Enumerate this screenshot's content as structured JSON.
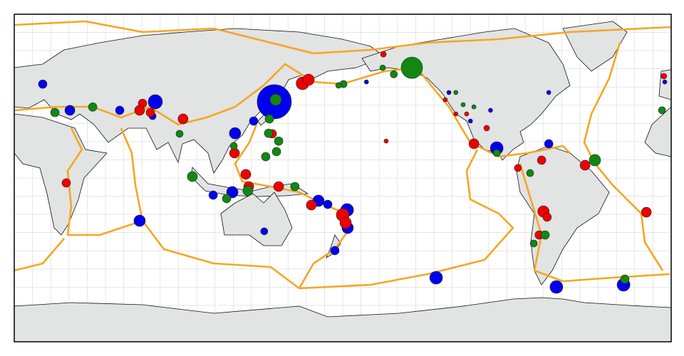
{
  "map": {
    "type": "scatter",
    "projection": "equirectangular",
    "lonlim": [
      0,
      360
    ],
    "latlim": [
      -90,
      90
    ],
    "grid": true,
    "grid_step": 10,
    "series": [
      {
        "color": "#0000ee",
        "lon": [
          142.5,
          77.3,
          15.6,
          30.5,
          57.8,
          121,
          131.2,
          68.7,
          137,
          109,
          119.5,
          166.7,
          171.8,
          182.4,
          182.7,
          175.7,
          231.2,
          297.1,
          333.9,
          264.4,
          292.9,
          217.9,
          75.8,
          157,
          193,
          238.2,
          250,
          261,
          292.9,
          356.5
        ],
        "lat": [
          41.9,
          41.9,
          51.6,
          37.2,
          37.2,
          24.6,
          31.3,
          -23.5,
          -29.3,
          -9.4,
          -7.8,
          -12.5,
          -14.5,
          -17.6,
          -27.4,
          -39.9,
          -54.8,
          -59.9,
          -58.7,
          16.4,
          18.8,
          62.6,
          34,
          52,
          52.8,
          47,
          31.3,
          37.2,
          47,
          52.8
        ],
        "sizes": [
          24,
          10,
          6,
          7,
          6,
          8,
          6,
          8,
          5,
          6,
          8,
          8,
          6,
          9,
          8,
          6,
          9,
          9,
          9,
          9,
          6,
          7,
          5,
          6,
          3,
          3,
          3,
          3,
          3,
          3
        ]
      },
      {
        "color": "#ee0000",
        "lon": [
          92.5,
          70.3,
          68.7,
          74.6,
          158,
          161.3,
          28.5,
          120.7,
          141.4,
          126.9,
          128.5,
          144.9,
          162.8,
          180,
          181.6,
          251.9,
          289,
          276,
          312.8,
          290,
          292,
          287.7,
          346.4,
          258.9,
          180.4,
          202.3,
          356,
          203.8,
          236.2,
          242,
          247.9
        ],
        "lat": [
          32.5,
          41,
          37.2,
          36,
          52,
          54,
          -2.7,
          13.7,
          24.3,
          2,
          -4.7,
          -4.7,
          -14.9,
          -20.3,
          -24.6,
          18.8,
          9.8,
          5.5,
          7,
          -18.4,
          -21.5,
          -31.3,
          -18.8,
          27.4,
          51.6,
          68,
          56,
          20.3,
          43,
          35.2,
          35.2
        ],
        "sizes": [
          7,
          6,
          7,
          6,
          9,
          8,
          6,
          7,
          6,
          7,
          7,
          7,
          7,
          9,
          8,
          7,
          6,
          5,
          7,
          8,
          6,
          6,
          7,
          4,
          5,
          4,
          4,
          3,
          3,
          3,
          3
        ]
      },
      {
        "color": "#118811",
        "lon": [
          217.9,
          22.3,
          43,
          90.6,
          139.4,
          144.9,
          137.8,
          143.7,
          120.3,
          97.6,
          116.4,
          128,
          153.8,
          139.8,
          143.3,
          180.4,
          208,
          318.2,
          282.7,
          290.9,
          284.7,
          334.6,
          355,
          264.4,
          246,
          242,
          251.9,
          201.9,
          177.7
        ],
        "lat": [
          60.6,
          36,
          39,
          24.3,
          24.6,
          20.3,
          11.7,
          14.5,
          17.6,
          0.8,
          -11.3,
          -7,
          -4.7,
          32.5,
          43,
          51.6,
          57,
          9.8,
          2.7,
          -31.3,
          -36,
          -55.6,
          37.2,
          13.7,
          40.3,
          47,
          39.1,
          60.6,
          50.9
        ],
        "sizes": [
          15,
          6,
          6,
          5,
          6,
          6,
          6,
          6,
          5,
          7,
          6,
          7,
          6,
          6,
          8,
          5,
          5,
          8,
          5,
          6,
          5,
          6,
          5,
          5,
          3,
          3,
          3,
          4,
          4
        ]
      }
    ]
  }
}
